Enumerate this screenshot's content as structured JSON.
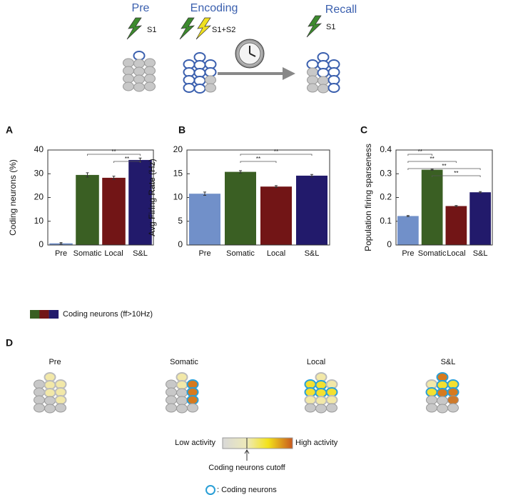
{
  "schematic": {
    "pre": "Pre",
    "encoding": "Encoding",
    "recall": "Recall",
    "stim_pre": "S1",
    "stim_encoding": "S1+S2",
    "stim_recall": "S1"
  },
  "chart_data": [
    {
      "type": "bar",
      "panel": "A",
      "ylabel": "Coding neurons (%)",
      "categories": [
        "Pre",
        "Somatic",
        "Local",
        "S&L"
      ],
      "values": [
        0.7,
        29.5,
        28.3,
        35.8
      ],
      "errors": [
        0.3,
        0.9,
        0.7,
        0.8
      ],
      "colors": [
        "#7190c9",
        "#3a5f23",
        "#721516",
        "#221a6b"
      ],
      "ylim": [
        0,
        40
      ],
      "yticks": [
        0,
        10,
        20,
        30,
        40
      ],
      "significance": [
        {
          "label": "**",
          "between": [
            "Somatic",
            "S&L"
          ]
        },
        {
          "label": "**",
          "between": [
            "Local",
            "S&L"
          ]
        }
      ]
    },
    {
      "type": "bar",
      "panel": "B",
      "ylabel": "Avg Firing Rate (Hz)",
      "categories": [
        "Pre",
        "Somatic",
        "Local",
        "S&L"
      ],
      "values": [
        10.8,
        15.4,
        12.3,
        14.6
      ],
      "errors": [
        0.35,
        0.25,
        0.2,
        0.25
      ],
      "colors": [
        "#7190c9",
        "#3a5f23",
        "#721516",
        "#221a6b"
      ],
      "ylim": [
        0,
        20
      ],
      "yticks": [
        0,
        5,
        10,
        15,
        20
      ],
      "significance": [
        {
          "label": "**",
          "between": [
            "Somatic",
            "S&L"
          ]
        },
        {
          "label": "**",
          "between": [
            "Somatic",
            "Local"
          ]
        }
      ]
    },
    {
      "type": "bar",
      "panel": "C",
      "ylabel": "Population firing sparseness",
      "categories": [
        "Pre",
        "Somatic",
        "Local",
        "S&L"
      ],
      "values": [
        0.122,
        0.317,
        0.164,
        0.222
      ],
      "errors": [
        0.002,
        0.002,
        0.002,
        0.003
      ],
      "colors": [
        "#7190c9",
        "#3a5f23",
        "#721516",
        "#221a6b"
      ],
      "ylim": [
        0,
        0.4
      ],
      "yticks": [
        0,
        0.1,
        0.2,
        0.3,
        0.4
      ],
      "significance": [
        {
          "label": "**",
          "between": [
            "Pre",
            "Somatic"
          ]
        },
        {
          "label": "**",
          "between": [
            "Pre",
            "Local"
          ]
        },
        {
          "label": "**",
          "between": [
            "Pre",
            "S&L"
          ]
        },
        {
          "label": "**",
          "between": [
            "Somatic",
            "S&L"
          ]
        }
      ]
    }
  ],
  "legend": {
    "label": "Coding neurons (ff>10Hz)",
    "colors": [
      "#3a5f23",
      "#721516",
      "#221a6b"
    ]
  },
  "panel_d": {
    "panel": "D",
    "conditions": [
      "Pre",
      "Somatic",
      "Local",
      "S&L"
    ],
    "colorbar": {
      "low": "Low activity",
      "high": "High activity",
      "cutoff": "Coding neurons cutoff"
    },
    "coding_legend": ": Coding neurons"
  }
}
